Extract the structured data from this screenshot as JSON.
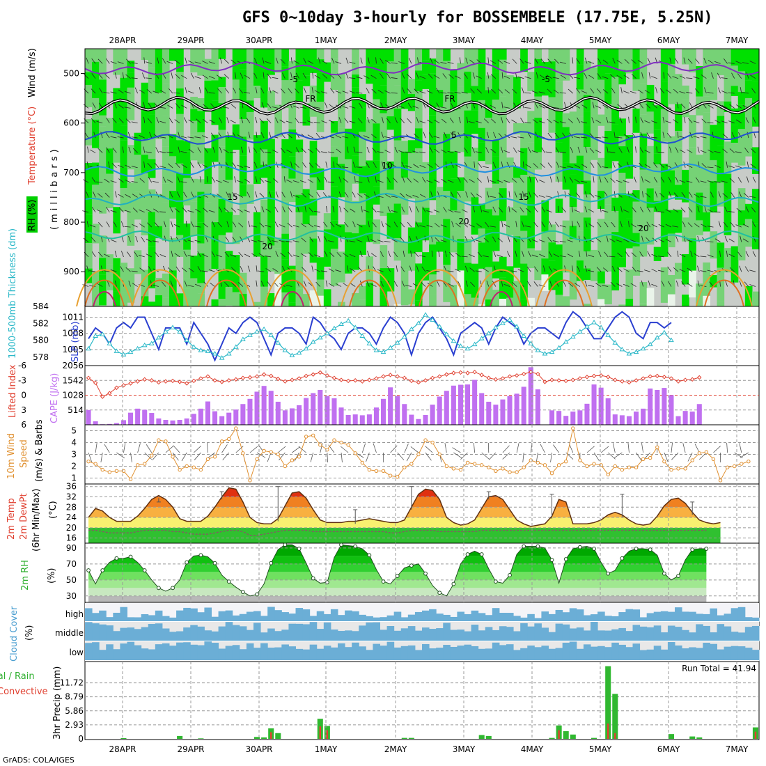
{
  "title": "GFS 0~10day 3-hourly for BOSSEMBELE (17.75E, 5.25N)",
  "credit": "GrADS: COLA/IGES",
  "colors": {
    "rh_green": "#00e000",
    "rh_light": "#76d276",
    "rh_gray": "#c8ccc8",
    "slp": "#2a3fd0",
    "thickness": "#2ab8c8",
    "lifted": "#e04030",
    "cape": "#c070f0",
    "wind10": "#e09030",
    "cloud": "#6baed6",
    "precip_total": "#30b830",
    "precip_conv": "#e04030"
  },
  "chart_data": [
    {
      "type": "time-height-cross-section",
      "name": "upper-air",
      "x_labels": [
        "28APR",
        "29APR",
        "30APR",
        "1MAY",
        "2MAY",
        "3MAY",
        "4MAY",
        "5MAY",
        "6MAY",
        "7MAY"
      ],
      "y_ticks": [
        "500",
        "600",
        "700",
        "800",
        "900"
      ],
      "ylim": [
        970,
        450
      ],
      "ylabel": "(millibars)",
      "legend": [
        "Wind (m/s)",
        "Temperature (°C)",
        "RH (%)"
      ],
      "contour_labels": [
        "-5",
        "-5",
        "FR",
        "FR",
        "5",
        "5",
        "10",
        "15",
        "15",
        "20",
        "20",
        "20"
      ],
      "temperature_isotherms": [
        {
          "label": "-5",
          "mean_hPa": 490
        },
        {
          "label": "FR",
          "mean_hPa": 565
        },
        {
          "label": "5",
          "mean_hPa": 630
        },
        {
          "label": "10",
          "mean_hPa": 695
        },
        {
          "label": "15",
          "mean_hPa": 755
        },
        {
          "label": "20",
          "mean_hPa": 830
        }
      ]
    },
    {
      "type": "line",
      "name": "slp-thickness",
      "series": [
        {
          "name": "SLP (mb)",
          "axis": "right",
          "values": [
            1007,
            1009,
            1008,
            1006,
            1009,
            1010,
            1009,
            1011,
            1011,
            1008,
            1005,
            1009,
            1009,
            1009,
            1006,
            1010,
            1008,
            1006,
            1003,
            1006,
            1009,
            1008,
            1010,
            1011,
            1010,
            1007,
            1004,
            1008,
            1009,
            1009,
            1008,
            1006,
            1011,
            1010,
            1008,
            1007,
            1005,
            1008,
            1009,
            1009,
            1008,
            1006,
            1009,
            1011,
            1010,
            1008,
            1004,
            1008,
            1010,
            1011,
            1009,
            1007,
            1004,
            1008,
            1009,
            1010,
            1009,
            1006,
            1009,
            1011,
            1010,
            1009,
            1006,
            1008,
            1009,
            1009,
            1008,
            1007,
            1010,
            1012,
            1011,
            1009,
            1007,
            1007,
            1009,
            1011,
            1012,
            1011,
            1008,
            1007,
            1010,
            1010,
            1009,
            1010
          ]
        },
        {
          "name": "1000-500mb Thickness (dm)",
          "axis": "left",
          "values": [
            579.0,
            580.5,
            580.7,
            579.6,
            578.7,
            578.3,
            578.6,
            579.0,
            579.4,
            579.6,
            580.3,
            581.0,
            581.5,
            581.0,
            580.0,
            579.2,
            578.8,
            578.7,
            578.4,
            577.9,
            578.4,
            579.2,
            580.1,
            580.6,
            581.0,
            581.3,
            580.6,
            579.7,
            578.8,
            578.2,
            578.5,
            579.0,
            579.8,
            580.3,
            580.8,
            581.4,
            581.9,
            582.3,
            581.5,
            580.5,
            579.6,
            578.8,
            578.6,
            579.1,
            579.7,
            580.4,
            581.3,
            582.0,
            583.0,
            582.4,
            581.6,
            580.7,
            579.9,
            579.3,
            579.0,
            579.5,
            580.2,
            580.8,
            581.5,
            582.0,
            582.4,
            581.6,
            580.5,
            579.6,
            578.8,
            578.4,
            578.6,
            579.1,
            579.8,
            580.4,
            581.0,
            581.6,
            582.1,
            581.5,
            580.6,
            579.7,
            578.9,
            578.4,
            578.6,
            579.0,
            579.5,
            580.3,
            580.9,
            580.0
          ]
        }
      ],
      "left_ticks": [
        "578",
        "580",
        "582",
        "584"
      ],
      "right_ticks": [
        "1005",
        "1008",
        "1011"
      ],
      "left_label": "1000-500mb Thickness (dm)",
      "right_label": "SLP (mb)"
    },
    {
      "type": "bar-line",
      "name": "cape-lifted",
      "series": [
        {
          "name": "CAPE (J/kg)",
          "type": "bar",
          "values": [
            514,
            120,
            20,
            30,
            60,
            160,
            420,
            560,
            520,
            410,
            220,
            170,
            150,
            170,
            220,
            380,
            560,
            810,
            470,
            300,
            420,
            530,
            720,
            900,
            1150,
            1350,
            1180,
            800,
            500,
            570,
            680,
            930,
            1100,
            1210,
            1000,
            920,
            600,
            340,
            360,
            330,
            360,
            600,
            900,
            1300,
            1000,
            720,
            350,
            200,
            340,
            700,
            980,
            1180,
            1360,
            1390,
            1400,
            1560,
            1100,
            800,
            700,
            880,
            1000,
            1080,
            1320,
            2000,
            1230,
            0,
            500,
            480,
            310,
            460,
            500,
            730,
            1400,
            1290,
            920,
            360,
            330,
            300,
            460,
            560,
            1260,
            1210,
            1280,
            1030,
            300,
            480,
            460,
            720
          ]
        },
        {
          "name": "Lifted Index",
          "type": "line",
          "values": [
            -3.5,
            -2.5,
            0.3,
            -0.4,
            -1.5,
            -2.0,
            -2.4,
            -2.8,
            -3.2,
            -3.0,
            -2.6,
            -2.8,
            -2.9,
            -2.7,
            -2.4,
            -2.9,
            -3.4,
            -3.8,
            -3.0,
            -2.7,
            -3.0,
            -3.2,
            -3.5,
            -3.6,
            -3.8,
            -4.2,
            -3.9,
            -3.3,
            -2.8,
            -3.1,
            -3.4,
            -3.9,
            -4.2,
            -4.6,
            -4.0,
            -3.5,
            -3.1,
            -2.9,
            -3.0,
            -2.8,
            -3.1,
            -3.4,
            -3.8,
            -4.1,
            -3.8,
            -3.5,
            -2.9,
            -2.6,
            -3.0,
            -3.5,
            -3.8,
            -4.2,
            -4.5,
            -4.6,
            -4.5,
            -4.7,
            -4.1,
            -3.5,
            -3.2,
            -3.4,
            -3.8,
            -4.0,
            -4.3,
            -4.7,
            -4.3,
            -2.7,
            -3.1,
            -3.0,
            -2.9,
            -3.1,
            -3.4,
            -3.7,
            -3.9,
            -4.0,
            -3.7,
            -3.1,
            -2.8,
            -2.6,
            -3.0,
            -3.4,
            -3.8,
            -3.9,
            -3.7,
            -3.4,
            -2.8,
            -3.1,
            -3.2,
            -3.6
          ]
        }
      ],
      "left_ticks": [
        "-6",
        "-3",
        "0",
        "3",
        "6"
      ],
      "right_ticks": [
        "514",
        "1028",
        "1542",
        "2056"
      ],
      "left_label": "Lifted Index",
      "right_label": "CAPE (J/kg)"
    },
    {
      "type": "line",
      "name": "wind10m",
      "series": [
        {
          "name": "10m Wind Speed (m/s)",
          "values": [
            2.4,
            2.2,
            1.7,
            1.5,
            1.6,
            1.6,
            0.9,
            2.1,
            2.2,
            2.9,
            4.2,
            4.1,
            2.8,
            1.7,
            2.0,
            1.9,
            1.7,
            2.6,
            2.8,
            4.1,
            4.3,
            5.2,
            3.1,
            0.8,
            2.6,
            3.3,
            3.2,
            3.0,
            2.0,
            2.5,
            2.8,
            4.5,
            4.6,
            3.8,
            3.4,
            4.2,
            4.0,
            3.8,
            3.1,
            2.3,
            1.7,
            1.6,
            1.6,
            1.2,
            1.1,
            1.9,
            2.2,
            3.0,
            4.2,
            4.0,
            3.0,
            2.0,
            1.8,
            1.7,
            2.3,
            2.2,
            2.1,
            1.9,
            1.6,
            1.8,
            1.5,
            1.5,
            1.9,
            2.5,
            2.3,
            2.1,
            1.4,
            2.1,
            2.4,
            5.2,
            2.5,
            2.0,
            2.2,
            2.1,
            1.3,
            2.0,
            1.7,
            1.9,
            1.9,
            2.6,
            2.7,
            3.6,
            2.4,
            1.7,
            1.8,
            1.8,
            2.5,
            3.1,
            3.2,
            2.6,
            0.8,
            1.9,
            2.0,
            2.2,
            2.4
          ]
        }
      ],
      "ylim": [
        0.5,
        5.5
      ],
      "y_ticks": [
        "1",
        "2",
        "3",
        "4",
        "5"
      ],
      "ylabel": "10m Wind Speed & Barbs (m/s)"
    },
    {
      "type": "area",
      "name": "temperature",
      "series": [
        {
          "name": "2m Temp (°C)",
          "values": [
            24,
            27.5,
            26.5,
            24,
            22.5,
            22.5,
            22.5,
            24.5,
            27.5,
            31,
            32.5,
            31,
            28,
            23.5,
            22.5,
            22.5,
            22.5,
            24.5,
            28,
            32,
            35.5,
            35,
            30,
            24,
            22,
            21.5,
            21.5,
            23.5,
            28.5,
            33.5,
            34,
            31.5,
            27,
            23,
            22,
            22,
            22,
            22.5,
            22.5,
            23,
            23.5,
            23,
            22.5,
            22,
            22,
            23,
            28,
            33,
            35,
            34.5,
            31,
            24,
            22,
            21,
            21.5,
            23,
            27.5,
            32,
            32.5,
            31,
            27,
            23,
            21.5,
            20.5,
            21,
            21.5,
            24.5,
            31,
            30,
            21.5,
            21.5,
            21.5,
            22,
            23,
            25,
            26,
            25,
            23,
            21.5,
            21,
            21.5,
            24.5,
            28.5,
            31,
            31.5,
            29.5,
            26,
            23,
            22,
            21.5,
            22
          ]
        },
        {
          "name": "2m DewPt (°C)",
          "values": [
            19,
            19,
            18.5,
            18,
            18,
            18,
            18,
            18.5,
            19,
            19,
            19,
            19,
            18.5,
            18.5,
            18,
            17.5,
            17.5,
            17.5,
            18,
            18.5,
            19,
            19,
            18.5,
            17,
            17,
            17.5,
            18,
            18.5,
            19,
            19,
            19,
            19,
            18.5,
            18.5,
            18.5,
            18.5,
            18.5,
            18.5,
            18.5,
            18.5,
            18.5,
            18.5,
            18.5,
            18,
            18,
            18.5,
            19,
            19,
            19,
            19,
            18.5,
            18.5,
            18.5,
            18.5,
            18.5,
            18.5,
            19,
            19,
            19,
            19,
            19,
            19,
            19,
            19,
            19,
            19,
            19,
            19,
            19,
            19,
            19,
            19,
            19,
            19,
            19,
            19,
            19,
            19,
            19,
            19,
            19,
            19,
            19,
            19,
            19,
            19,
            19,
            19,
            19
          ]
        }
      ],
      "ylim": [
        14,
        37
      ],
      "y_ticks": [
        "16",
        "20",
        "24",
        "28",
        "32",
        "36"
      ],
      "ylabel": "2m Temp 2m DewPt (6hr Min/Max) (°C)"
    },
    {
      "type": "area",
      "name": "relative-humidity",
      "series": [
        {
          "name": "2m RH (%)",
          "values": [
            62,
            45,
            62,
            72,
            77,
            77,
            79,
            72,
            62,
            50,
            40,
            36,
            40,
            50,
            72,
            80,
            81,
            79,
            71,
            56,
            48,
            41,
            35,
            30,
            32,
            45,
            71,
            88,
            94,
            94,
            89,
            71,
            52,
            46,
            47,
            78,
            94,
            93,
            92,
            89,
            81,
            63,
            48,
            45,
            55,
            65,
            68,
            70,
            58,
            43,
            34,
            30,
            45,
            70,
            82,
            86,
            82,
            64,
            48,
            46,
            56,
            82,
            92,
            92,
            92,
            90,
            75,
            46,
            76,
            89,
            91,
            92,
            89,
            72,
            58,
            62,
            77,
            86,
            89,
            89,
            88,
            81,
            58,
            50,
            55,
            75,
            88,
            89,
            89
          ]
        }
      ],
      "ylim": [
        22,
        96
      ],
      "y_ticks": [
        "30",
        "50",
        "70",
        "90"
      ],
      "ylabel": "2m RH (%)"
    },
    {
      "type": "bar",
      "name": "cloud-cover",
      "rows": [
        "high",
        "middle",
        "low"
      ],
      "ylabel": "Cloud Cover (%)"
    },
    {
      "type": "bar",
      "name": "precipitation",
      "series": [
        {
          "name": "Total",
          "values": [
            {
              "x": 5,
              "v": 0.15
            },
            {
              "x": 13,
              "v": 0.6
            },
            {
              "x": 16,
              "v": 0.1
            },
            {
              "x": 24,
              "v": 0.4
            },
            {
              "x": 25,
              "v": 0.3
            },
            {
              "x": 26,
              "v": 2.2
            },
            {
              "x": 27,
              "v": 1.2
            },
            {
              "x": 33,
              "v": 4.2
            },
            {
              "x": 34,
              "v": 2.7
            },
            {
              "x": 45,
              "v": 0.2
            },
            {
              "x": 46,
              "v": 0.2
            },
            {
              "x": 56,
              "v": 0.8
            },
            {
              "x": 57,
              "v": 0.6
            },
            {
              "x": 66,
              "v": 0.2
            },
            {
              "x": 67,
              "v": 2.8
            },
            {
              "x": 68,
              "v": 1.6
            },
            {
              "x": 69,
              "v": 0.9
            },
            {
              "x": 72,
              "v": 0.2
            },
            {
              "x": 74,
              "v": 15.2
            },
            {
              "x": 75,
              "v": 9.4
            },
            {
              "x": 83,
              "v": 1.0
            },
            {
              "x": 86,
              "v": 0.5
            },
            {
              "x": 87,
              "v": 0.3
            },
            {
              "x": 95,
              "v": 2.4
            }
          ]
        },
        {
          "name": "Convective",
          "values": [
            {
              "x": 26,
              "v": 1.4
            },
            {
              "x": 33,
              "v": 2.6
            },
            {
              "x": 34,
              "v": 1.8
            },
            {
              "x": 67,
              "v": 1.8
            },
            {
              "x": 74,
              "v": 3.2
            },
            {
              "x": 75,
              "v": 1.2
            },
            {
              "x": 95,
              "v": 1.5
            }
          ]
        }
      ],
      "ylim": [
        0,
        15.3
      ],
      "y_ticks": [
        "0",
        "2.93",
        "5.86",
        "8.79",
        "11.72"
      ],
      "ylabel": "3hr Precip (mm)",
      "legend": [
        "Total / Rain",
        "Convective"
      ],
      "run_total_label": "Run Total = 41.94"
    }
  ],
  "labels": {
    "top_legend_wind": "Wind (m/s)",
    "top_legend_temp": "Temperature (°C)",
    "top_legend_rh": "RH (%)",
    "top_ylabel": "(millibars)",
    "p2_left": "1000-500mb Thickness (dm)",
    "p2_right": "SLP (mb)",
    "p3_left": "Lifted Index",
    "p3_right": "CAPE (J/kg)",
    "p4_a": "10m Wind",
    "p4_b": "Speed",
    "p4_c": "(m/s) & Barbs",
    "p5_a": "2m Temp",
    "p5_b": "2m DewPt",
    "p5_c": "(6hr Min/Max)",
    "p5_d": "(°C)",
    "p6_a": "2m RH",
    "p6_b": "(%)",
    "p7_a": "Cloud Cover",
    "p7_b": "(%)",
    "p8_a": "Total / Rain",
    "p8_b": "Convective",
    "p8_c": "3hr Precip (mm)"
  }
}
